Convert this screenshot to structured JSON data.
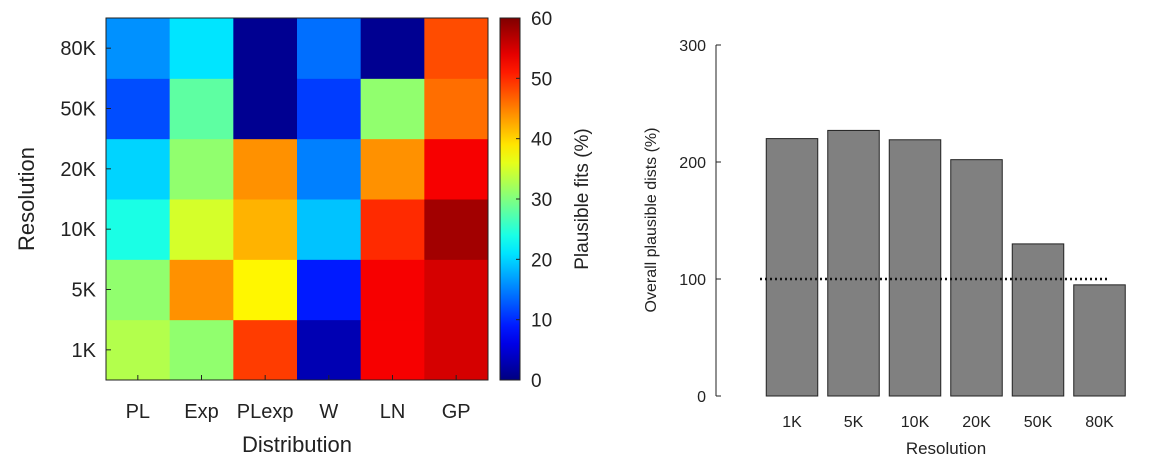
{
  "chart_data": [
    {
      "type": "heatmap",
      "title": "",
      "xlabel": "Distribution",
      "ylabel": "Resolution",
      "x_categories": [
        "PL",
        "Exp",
        "PLexp",
        "W",
        "LN",
        "GP"
      ],
      "y_categories": [
        "1K",
        "5K",
        "10K",
        "20K",
        "50K",
        "80K"
      ],
      "values": [
        [
          33,
          31,
          49,
          3,
          53,
          55
        ],
        [
          31,
          44,
          38,
          9,
          53,
          55
        ],
        [
          24,
          35,
          42,
          19,
          50,
          58
        ],
        [
          20,
          31,
          44,
          15,
          44,
          53
        ],
        [
          12,
          28,
          1,
          11,
          31,
          46
        ],
        [
          16,
          21,
          1,
          14,
          1,
          48
        ]
      ],
      "colorbar": {
        "label": "Plausible fits (%)",
        "min": 0,
        "max": 60,
        "ticks": [
          "0",
          "10",
          "20",
          "30",
          "40",
          "50",
          "60"
        ],
        "colormap": "jet"
      }
    },
    {
      "type": "bar",
      "title": "",
      "xlabel": "Resolution",
      "ylabel": "Overall plausible dists (%)",
      "categories": [
        "1K",
        "5K",
        "10K",
        "20K",
        "50K",
        "80K"
      ],
      "values": [
        220,
        227,
        219,
        202,
        130,
        95
      ],
      "ylim": [
        0,
        300
      ],
      "yticks": [
        "0",
        "100",
        "200",
        "300"
      ],
      "reference_line": {
        "value": 100,
        "style": "dotted"
      },
      "bar_color": "#808080"
    }
  ]
}
